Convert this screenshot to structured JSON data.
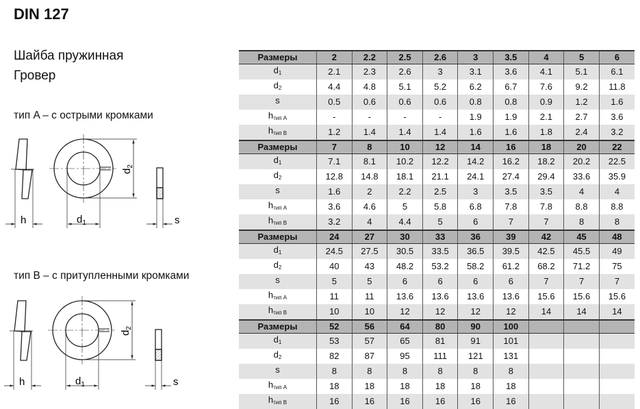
{
  "title": "DIN 127",
  "subtitle_line1": "Шайба пружинная",
  "subtitle_line2": "Гровер",
  "type_a_caption": "тип A – с острыми кромками",
  "type_b_caption": "тип B – с притупленными кромками",
  "drawing_labels": {
    "h": "h",
    "d1_main": "d",
    "d1_sub": "1",
    "d2_main": "d",
    "d2_sub": "2",
    "s": "s"
  },
  "row_labels": [
    {
      "main": "d",
      "sub": "1"
    },
    {
      "main": "d",
      "sub": "2"
    },
    {
      "main": "s",
      "sub": ""
    },
    {
      "main": "h",
      "sub": "тип A"
    },
    {
      "main": "h",
      "sub": "тип B"
    }
  ],
  "header_label": "Размеры",
  "tables": [
    {
      "sizes": [
        "2",
        "2.2",
        "2.5",
        "2.6",
        "3",
        "3.5",
        "4",
        "5",
        "6"
      ],
      "rows": [
        [
          "2.1",
          "2.3",
          "2.6",
          "3",
          "3.1",
          "3.6",
          "4.1",
          "5.1",
          "6.1"
        ],
        [
          "4.4",
          "4.8",
          "5.1",
          "5.2",
          "6.2",
          "6.7",
          "7.6",
          "9.2",
          "11.8"
        ],
        [
          "0.5",
          "0.6",
          "0.6",
          "0.6",
          "0.8",
          "0.8",
          "0.9",
          "1.2",
          "1.6"
        ],
        [
          "-",
          "-",
          "-",
          "-",
          "1.9",
          "1.9",
          "2.1",
          "2.7",
          "3.6"
        ],
        [
          "1.2",
          "1.4",
          "1.4",
          "1.4",
          "1.6",
          "1.6",
          "1.8",
          "2.4",
          "3.2"
        ]
      ]
    },
    {
      "sizes": [
        "7",
        "8",
        "10",
        "12",
        "14",
        "16",
        "18",
        "20",
        "22"
      ],
      "rows": [
        [
          "7.1",
          "8.1",
          "10.2",
          "12.2",
          "14.2",
          "16.2",
          "18.2",
          "20.2",
          "22.5"
        ],
        [
          "12.8",
          "14.8",
          "18.1",
          "21.1",
          "24.1",
          "27.4",
          "29.4",
          "33.6",
          "35.9"
        ],
        [
          "1.6",
          "2",
          "2.2",
          "2.5",
          "3",
          "3.5",
          "3.5",
          "4",
          "4"
        ],
        [
          "3.6",
          "4.6",
          "5",
          "5.8",
          "6.8",
          "7.8",
          "7.8",
          "8.8",
          "8.8"
        ],
        [
          "3.2",
          "4",
          "4.4",
          "5",
          "6",
          "7",
          "7",
          "8",
          "8"
        ]
      ]
    },
    {
      "sizes": [
        "24",
        "27",
        "30",
        "33",
        "36",
        "39",
        "42",
        "45",
        "48"
      ],
      "rows": [
        [
          "24.5",
          "27.5",
          "30.5",
          "33.5",
          "36.5",
          "39.5",
          "42.5",
          "45.5",
          "49"
        ],
        [
          "40",
          "43",
          "48.2",
          "53.2",
          "58.2",
          "61.2",
          "68.2",
          "71.2",
          "75"
        ],
        [
          "5",
          "5",
          "6",
          "6",
          "6",
          "6",
          "7",
          "7",
          "7"
        ],
        [
          "11",
          "11",
          "13.6",
          "13.6",
          "13.6",
          "13.6",
          "15.6",
          "15.6",
          "15.6"
        ],
        [
          "10",
          "10",
          "12",
          "12",
          "12",
          "12",
          "14",
          "14",
          "14"
        ]
      ]
    },
    {
      "sizes": [
        "52",
        "56",
        "64",
        "80",
        "90",
        "100",
        "",
        "",
        ""
      ],
      "rows": [
        [
          "53",
          "57",
          "65",
          "81",
          "91",
          "101",
          "",
          "",
          ""
        ],
        [
          "82",
          "87",
          "95",
          "111",
          "121",
          "131",
          "",
          "",
          ""
        ],
        [
          "8",
          "8",
          "8",
          "8",
          "8",
          "8",
          "",
          "",
          ""
        ],
        [
          "18",
          "18",
          "18",
          "18",
          "18",
          "18",
          "",
          "",
          ""
        ],
        [
          "16",
          "16",
          "16",
          "16",
          "16",
          "16",
          "",
          "",
          ""
        ]
      ]
    }
  ]
}
